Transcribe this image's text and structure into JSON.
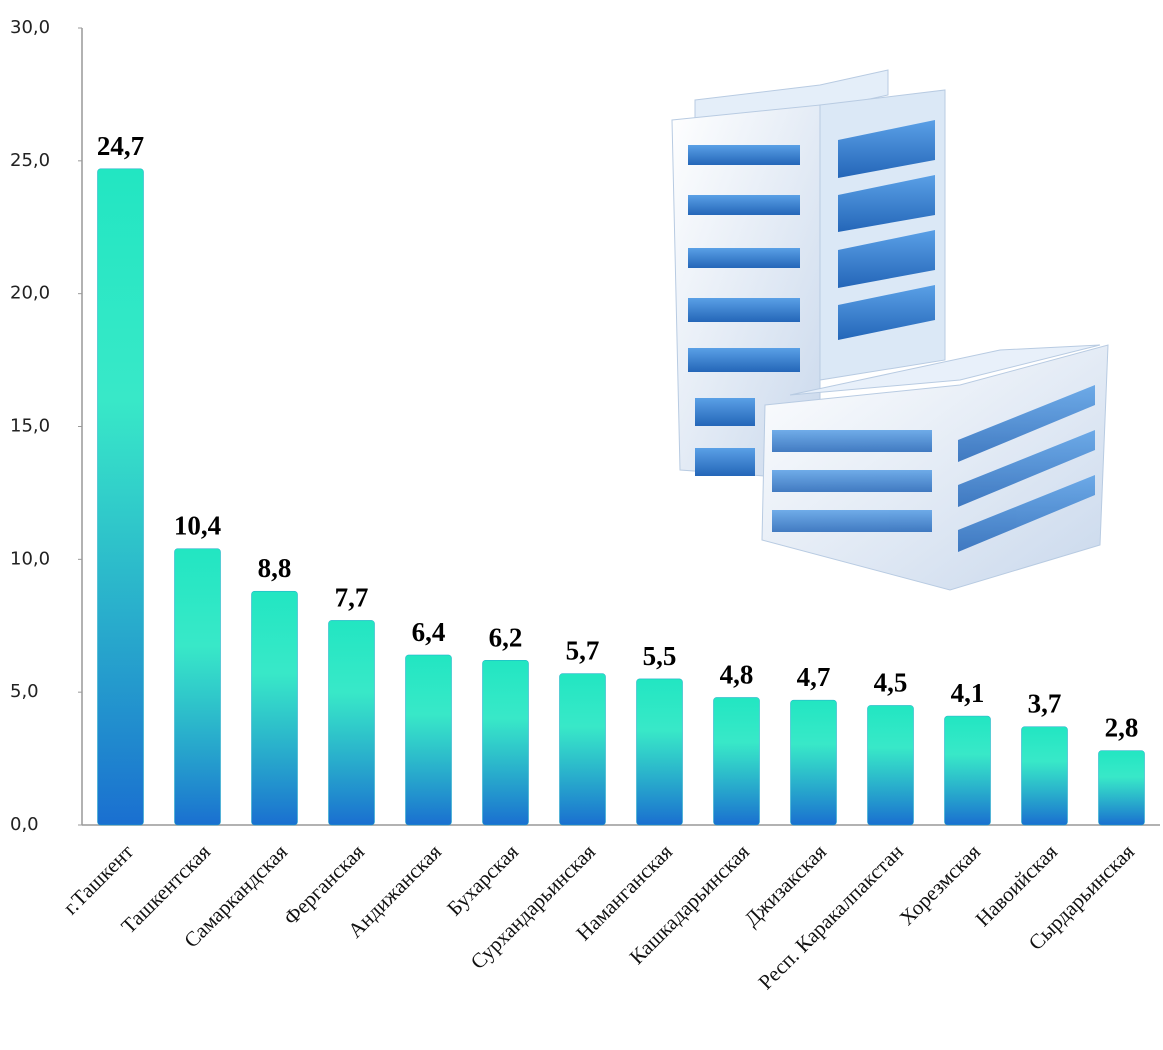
{
  "chart_data": {
    "type": "bar",
    "categories": [
      "г.Ташкент",
      "Ташкентская",
      "Самаркандская",
      "Ферганская",
      "Андижанская",
      "Бухарская",
      "Сурхандарьинская",
      "Наманганская",
      "Кашкадарьинская",
      "Джизакская",
      "Респ. Каракалпакстан",
      "Хорезмская",
      "Навоийская",
      "Сырдарьинская"
    ],
    "values": [
      24.7,
      10.4,
      8.8,
      7.7,
      6.4,
      6.2,
      5.7,
      5.5,
      4.8,
      4.7,
      4.5,
      4.1,
      3.7,
      2.8
    ],
    "value_labels": [
      "24,7",
      "10,4",
      "8,8",
      "7,7",
      "6,4",
      "6,2",
      "5,7",
      "5,5",
      "4,8",
      "4,7",
      "4,5",
      "4,1",
      "3,7",
      "2,8"
    ],
    "colors": [
      "#22e6c2",
      "#1a6fd0"
    ],
    "ylim": [
      0,
      30
    ],
    "yticks": [
      {
        "value": 0,
        "label": "0,0"
      },
      {
        "value": 5,
        "label": "5,0"
      },
      {
        "value": 10,
        "label": "10,0"
      },
      {
        "value": 15,
        "label": "15,0"
      },
      {
        "value": 20,
        "label": "20,0"
      },
      {
        "value": 25,
        "label": "25,0"
      },
      {
        "value": 30,
        "label": "30,0"
      }
    ],
    "grid": false
  }
}
